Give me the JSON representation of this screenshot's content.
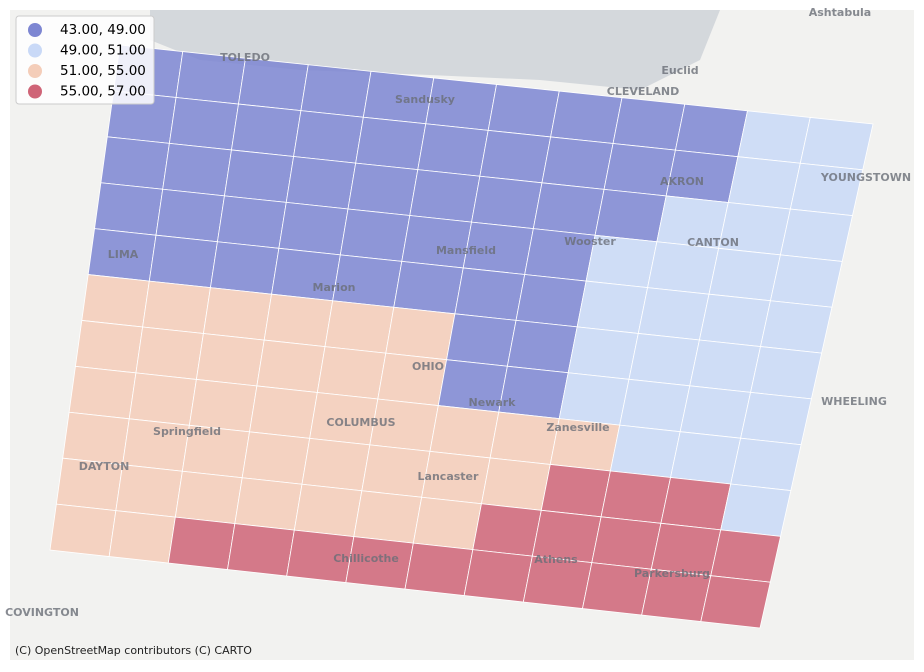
{
  "legend": {
    "items": [
      {
        "label": "43.00, 49.00",
        "color": "#7d86d2"
      },
      {
        "label": "49.00, 51.00",
        "color": "#c9d9f7"
      },
      {
        "label": "51.00, 55.00",
        "color": "#f4cdb9"
      },
      {
        "label": "55.00, 57.00",
        "color": "#cf6477"
      }
    ]
  },
  "grid": {
    "rows": [
      [
        0,
        0,
        0,
        0,
        0,
        0,
        0,
        0,
        0,
        0,
        1,
        1
      ],
      [
        0,
        0,
        0,
        0,
        0,
        0,
        0,
        0,
        0,
        0,
        1,
        1
      ],
      [
        0,
        0,
        0,
        0,
        0,
        0,
        0,
        0,
        0,
        1,
        1,
        1
      ],
      [
        0,
        0,
        0,
        0,
        0,
        0,
        0,
        0,
        1,
        1,
        1,
        1
      ],
      [
        0,
        0,
        0,
        0,
        0,
        0,
        0,
        0,
        1,
        1,
        1,
        1
      ],
      [
        2,
        2,
        2,
        2,
        2,
        2,
        0,
        0,
        1,
        1,
        1,
        1
      ],
      [
        2,
        2,
        2,
        2,
        2,
        2,
        0,
        0,
        1,
        1,
        1,
        1
      ],
      [
        2,
        2,
        2,
        2,
        2,
        2,
        2,
        2,
        2,
        1,
        1,
        1
      ],
      [
        2,
        2,
        2,
        2,
        2,
        2,
        2,
        2,
        3,
        3,
        3,
        1
      ],
      [
        2,
        2,
        2,
        2,
        2,
        2,
        2,
        3,
        3,
        3,
        3,
        3
      ],
      [
        2,
        2,
        3,
        3,
        3,
        3,
        3,
        3,
        3,
        3,
        3,
        3
      ]
    ]
  },
  "places": [
    "TOLEDO",
    "Sandusky",
    "Euclid",
    "CLEVELAND",
    "Ashtabula",
    "AKRON",
    "YOUNGSTOWN",
    "LIMA",
    "Mansfield",
    "Wooster",
    "CANTON",
    "Marion",
    "OHIO",
    "Newark",
    "WHEELING",
    "Springfield",
    "COLUMBUS",
    "Zanesville",
    "DAYTON",
    "Lancaster",
    "Chillicothe",
    "Athens",
    "Parkersburg",
    "COVINGTON"
  ],
  "attribution": "(C) OpenStreetMap contributors (C) CARTO"
}
